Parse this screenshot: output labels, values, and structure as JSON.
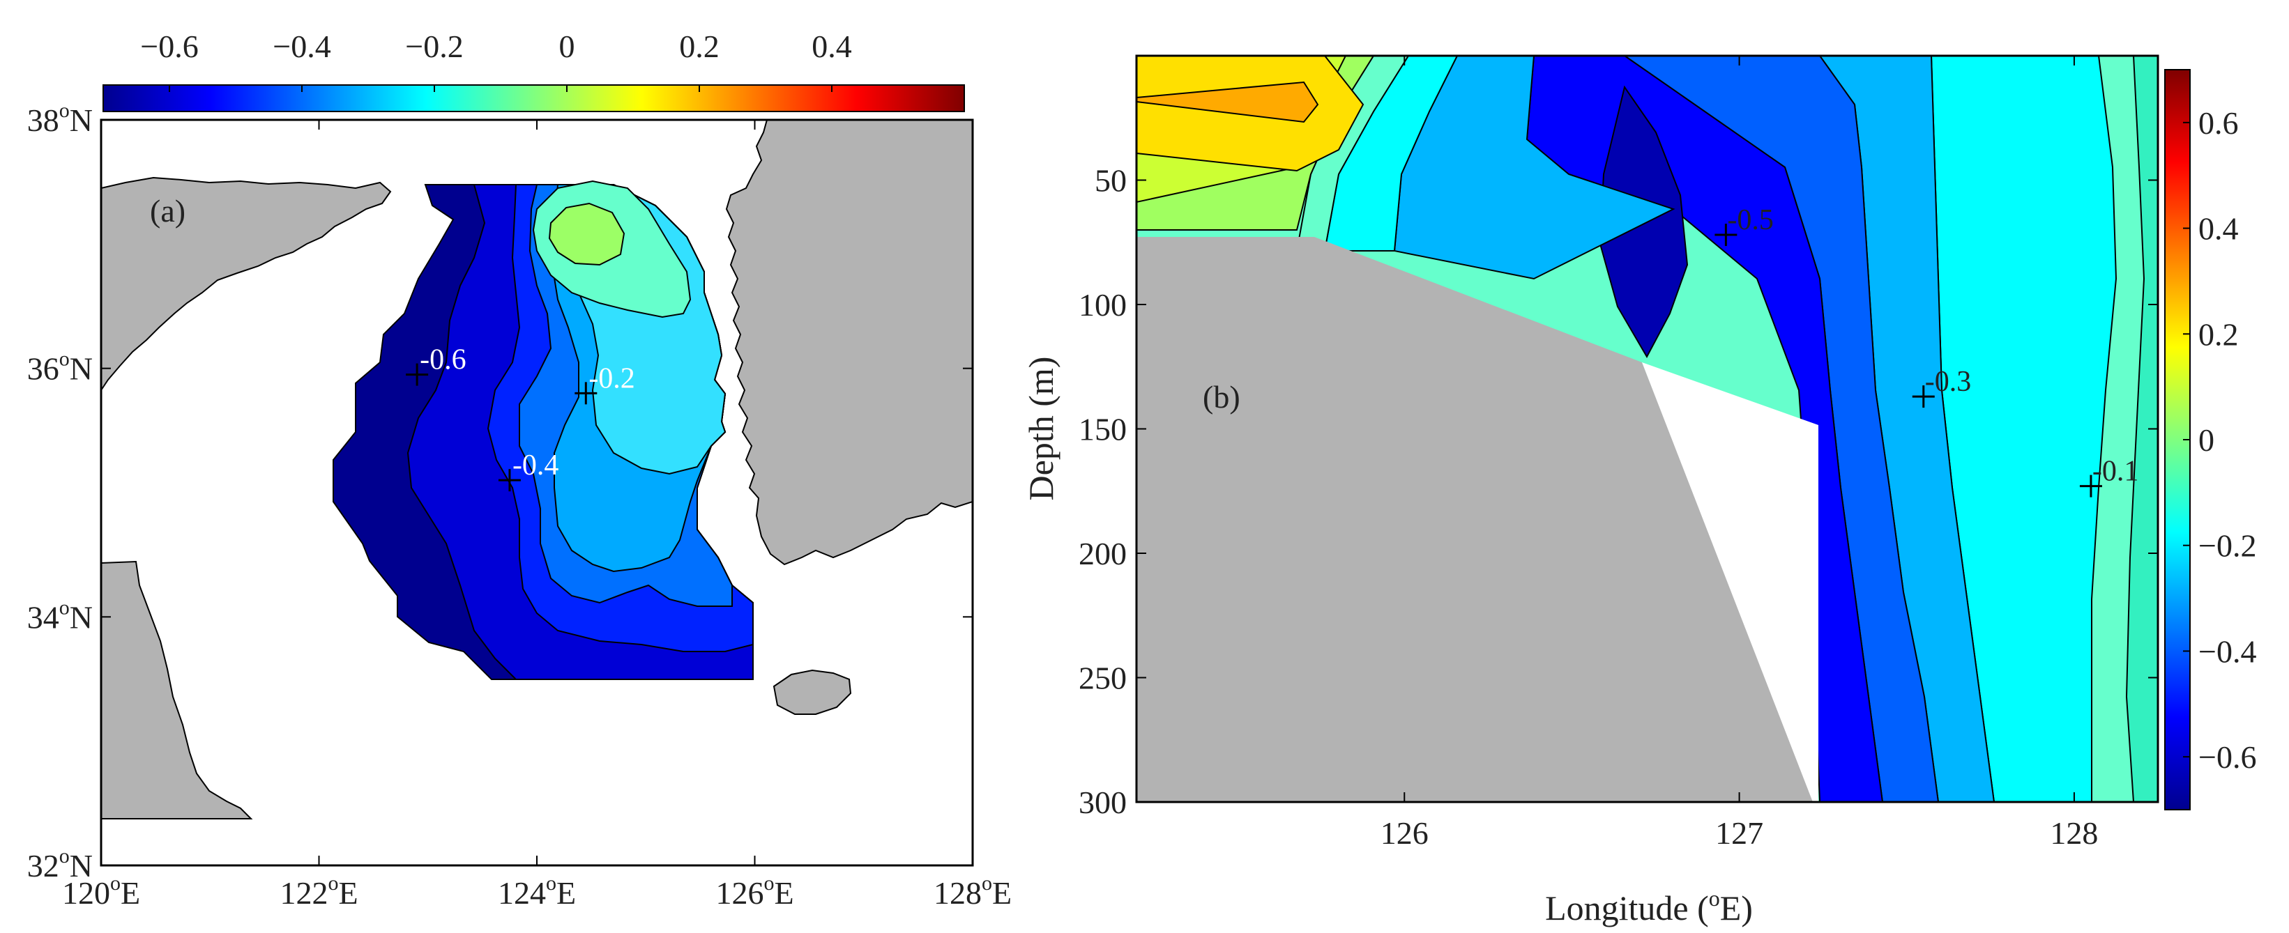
{
  "chart_data": [
    {
      "panel": "(a)",
      "type": "heatmap",
      "xaxis": {
        "ticks": [
          {
            "value": 120,
            "deg": "120",
            "unit": "o",
            "hem": "E"
          },
          {
            "value": 122,
            "deg": "122",
            "unit": "o",
            "hem": "E"
          },
          {
            "value": 124,
            "deg": "124",
            "unit": "o",
            "hem": "E"
          },
          {
            "value": 126,
            "deg": "126",
            "unit": "o",
            "hem": "E"
          },
          {
            "value": 128,
            "deg": "128",
            "unit": "o",
            "hem": "E"
          }
        ],
        "range": [
          120,
          128
        ]
      },
      "yaxis": {
        "ticks": [
          {
            "value": 32,
            "deg": "32",
            "unit": "o",
            "hem": "N"
          },
          {
            "value": 34,
            "deg": "34",
            "unit": "o",
            "hem": "N"
          },
          {
            "value": 36,
            "deg": "36",
            "unit": "o",
            "hem": "N"
          },
          {
            "value": 38,
            "deg": "38",
            "unit": "o",
            "hem": "N"
          }
        ],
        "range": [
          32,
          38
        ]
      },
      "colorbar": {
        "orientation": "horizontal",
        "location": "top",
        "range": [
          -0.7,
          0.6
        ],
        "ticks": [
          {
            "value": -0.6,
            "label": "−0.6"
          },
          {
            "value": -0.4,
            "label": "−0.4"
          },
          {
            "value": -0.2,
            "label": "−0.2"
          },
          {
            "value": 0,
            "label": "0"
          },
          {
            "value": 0.2,
            "label": "0.2"
          },
          {
            "value": 0.4,
            "label": "0.4"
          }
        ]
      },
      "contour_labels": [
        {
          "value": -0.6,
          "text": "-0.6",
          "lon": 122.9,
          "lat": 35.95
        },
        {
          "value": -0.2,
          "text": "-0.2",
          "lon": 124.45,
          "lat": 35.8
        },
        {
          "value": -0.4,
          "text": "-0.4",
          "lon": 123.75,
          "lat": 35.1
        }
      ]
    },
    {
      "panel": "(b)",
      "type": "heatmap",
      "xlabel_main": "Longitude (",
      "xlabel_sup": "o",
      "xlabel_tail": "E)",
      "ylabel": "Depth (m)",
      "xaxis": {
        "range": [
          125.2,
          128.25
        ],
        "ticks": [
          {
            "value": 126,
            "label": "126"
          },
          {
            "value": 127,
            "label": "127"
          },
          {
            "value": 128,
            "label": "128"
          }
        ]
      },
      "yaxis": {
        "range": [
          0,
          300
        ],
        "reversed": true,
        "ticks": [
          {
            "value": 50,
            "label": "50"
          },
          {
            "value": 100,
            "label": "100"
          },
          {
            "value": 150,
            "label": "150"
          },
          {
            "value": 200,
            "label": "200"
          },
          {
            "value": 250,
            "label": "250"
          },
          {
            "value": 300,
            "label": "300"
          }
        ]
      },
      "colorbar": {
        "orientation": "vertical",
        "location": "right",
        "range": [
          -0.7,
          0.7
        ],
        "ticks": [
          {
            "value": 0.6,
            "label": "0.6"
          },
          {
            "value": 0.4,
            "label": "0.4"
          },
          {
            "value": 0.2,
            "label": "0.2"
          },
          {
            "value": 0,
            "label": "0"
          },
          {
            "value": -0.2,
            "label": "−0.2"
          },
          {
            "value": -0.4,
            "label": "−0.4"
          },
          {
            "value": -0.6,
            "label": "−0.6"
          }
        ]
      },
      "contour_labels": [
        {
          "value": -0.5,
          "text": "-0.5",
          "lon": 126.96,
          "lat_or_depth": 72
        },
        {
          "value": -0.3,
          "text": "-0.3",
          "lon": 127.55,
          "lat_or_depth": 137
        },
        {
          "value": -0.1,
          "text": "-0.1",
          "lon": 128.05,
          "lat_or_depth": 173
        }
      ]
    }
  ],
  "colors": {
    "land": "#b3b3b3",
    "colormap": [
      "#00008f",
      "#0000ff",
      "#0080ff",
      "#00ffff",
      "#80ff80",
      "#ffff00",
      "#ff8000",
      "#ff0000",
      "#800000"
    ]
  }
}
